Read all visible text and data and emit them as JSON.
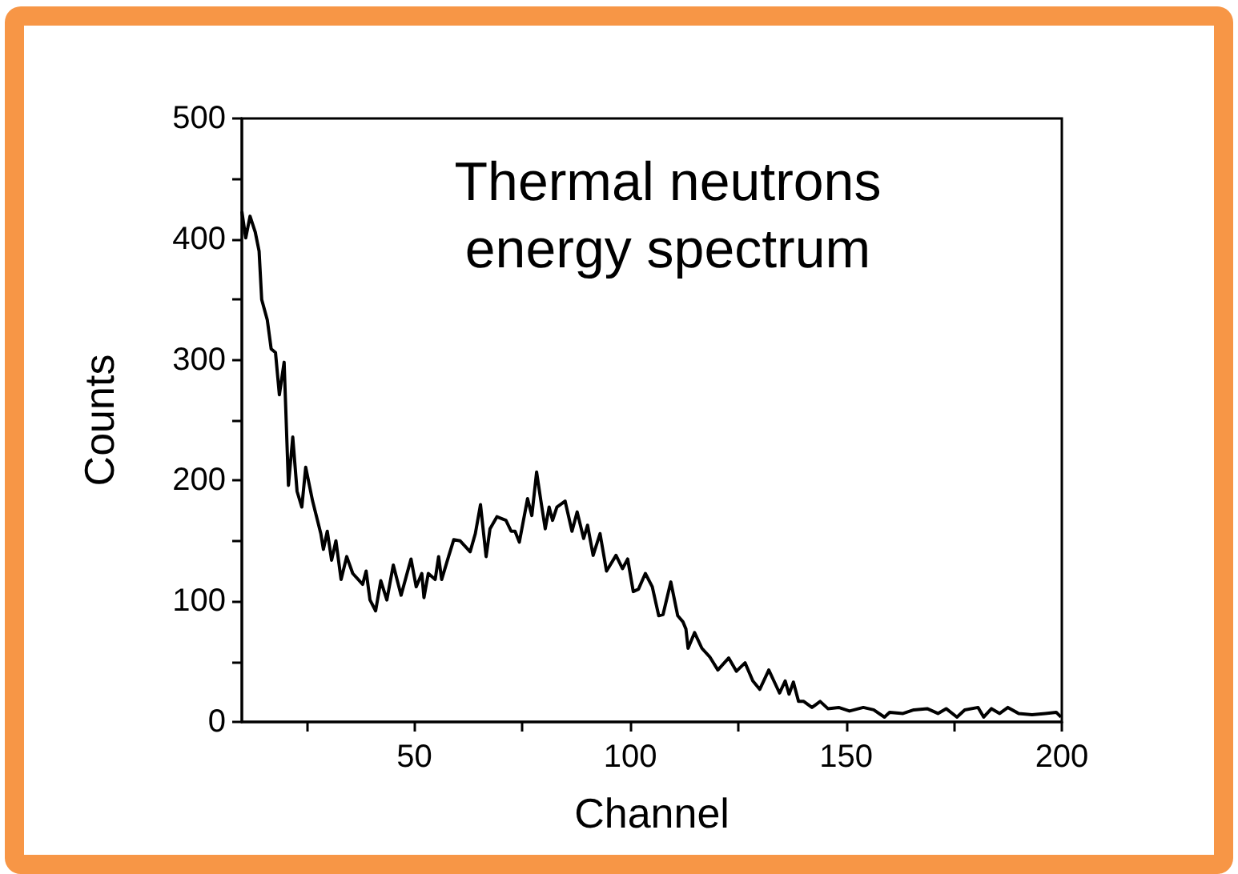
{
  "chart_data": {
    "type": "line",
    "title": "Thermal neutrons\nenergy spectrum",
    "xlabel": "Channel",
    "ylabel": "Counts",
    "xlim": [
      10,
      200
    ],
    "ylim": [
      0,
      500
    ],
    "xticks": [
      {
        "value": 25,
        "label": null
      },
      50,
      {
        "value": 75,
        "label": null
      },
      100,
      {
        "value": 125,
        "label": null
      },
      150,
      {
        "value": 175,
        "label": null
      },
      200
    ],
    "yticks": [
      0,
      {
        "value": 50,
        "label": null
      },
      100,
      {
        "value": 150,
        "label": null
      },
      200,
      {
        "value": 250,
        "label": null
      },
      300,
      {
        "value": 350,
        "label": null
      },
      400,
      {
        "value": 450,
        "label": null
      },
      500
    ],
    "grid": false,
    "marker": "none",
    "line_style": "solid",
    "series": [
      {
        "color": "#000000",
        "x": [
          10,
          10.9,
          11.9,
          13.1,
          14,
          14.6,
          15.9,
          16.8,
          17.8,
          18.7,
          19.8,
          20.8,
          21.8,
          22.8,
          23.9,
          24.8,
          26.4,
          28.3,
          28.9,
          29.8,
          30.8,
          31.8,
          33,
          34.3,
          35.7,
          38,
          38.8,
          39.7,
          41,
          42.2,
          43.6,
          45.1,
          46.9,
          49.2,
          50.4,
          51.7,
          52.2,
          53.2,
          54.8,
          55.6,
          56.3,
          57.9,
          59.1,
          60.6,
          62.9,
          64.1,
          65.3,
          66.6,
          67.5,
          69.1,
          71.2,
          72.4,
          73.3,
          74.3,
          76.2,
          77.2,
          78.3,
          79.3,
          80.3,
          81.2,
          82,
          83,
          84.9,
          86.5,
          87.7,
          89.2,
          90.1,
          91.4,
          93,
          94.5,
          96.7,
          98.2,
          99.4,
          100.7,
          101.9,
          103.5,
          105.1,
          106.6,
          107.6,
          109.4,
          111,
          112.2,
          112.9,
          113.4,
          114.9,
          116.6,
          118.4,
          120.3,
          122.8,
          124.6,
          126.6,
          128.4,
          130,
          132.1,
          133.8,
          134.6,
          135.9,
          136.8,
          137.8,
          139,
          140.2,
          142.1,
          144,
          145.8,
          148.3,
          150.8,
          154,
          156.4,
          158.9,
          160.1,
          163.2,
          165.7,
          168.8,
          171.3,
          173.2,
          175.7,
          177.5,
          180.6,
          181.9,
          183.7,
          185.6,
          187.5,
          190,
          193.1,
          196.2,
          198.7,
          199.8
        ],
        "values": [
          423,
          401,
          419,
          406,
          390,
          350,
          333,
          309,
          306,
          271,
          298,
          196,
          236,
          191,
          178,
          211,
          183,
          156,
          143,
          158,
          134,
          150,
          118,
          137,
          123,
          114,
          125,
          101,
          92,
          117,
          101,
          130,
          105,
          135,
          112,
          123,
          103,
          123,
          118,
          137,
          118,
          137,
          151,
          150,
          141,
          156,
          180,
          137,
          160,
          170,
          167,
          158,
          158,
          149,
          185,
          171,
          207,
          183,
          160,
          178,
          167,
          178,
          183,
          158,
          174,
          152,
          163,
          138,
          156,
          125,
          138,
          127,
          135,
          108,
          110,
          123,
          112,
          88,
          89,
          116,
          88,
          83,
          77,
          61,
          74,
          61,
          54,
          43,
          53,
          42,
          49,
          34,
          27,
          43,
          30,
          24,
          34,
          23,
          33,
          17,
          17,
          12,
          17,
          11,
          12,
          9,
          12,
          10,
          4,
          8,
          7,
          10,
          11,
          7,
          11,
          4,
          10,
          12,
          4,
          11,
          7,
          12,
          7,
          6,
          7,
          8,
          4
        ]
      }
    ]
  }
}
